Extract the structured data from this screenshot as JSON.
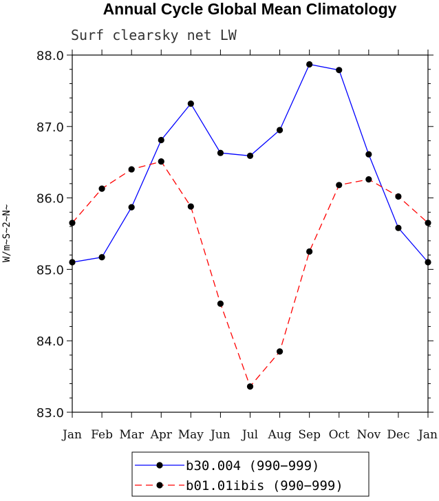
{
  "chart_data": {
    "type": "line",
    "title": "Annual Cycle Global Mean Climatology",
    "subtitle": "Surf clearsky net LW",
    "ylabel": "W/m~S~2~N~",
    "xlabel": "",
    "categories": [
      "Jan",
      "Feb",
      "Mar",
      "Apr",
      "May",
      "Jun",
      "Jul",
      "Aug",
      "Sep",
      "Oct",
      "Nov",
      "Dec",
      "Jan"
    ],
    "ylim": [
      83.0,
      88.0
    ],
    "yticks": [
      "83.0",
      "84.0",
      "85.0",
      "86.0",
      "87.0",
      "88.0"
    ],
    "grid": false,
    "legend_position": "bottom",
    "series": [
      {
        "name": "b30.004 (990−999)",
        "color": "#0000ff",
        "style": "solid",
        "values": [
          85.1,
          85.17,
          85.87,
          86.81,
          87.32,
          86.63,
          86.59,
          86.95,
          87.87,
          87.79,
          86.61,
          85.58,
          85.1
        ]
      },
      {
        "name": "b01.01ibis (990−999)",
        "color": "#ff0000",
        "style": "dashed",
        "values": [
          85.65,
          86.13,
          86.4,
          86.51,
          85.88,
          84.52,
          83.36,
          83.85,
          85.25,
          86.18,
          86.26,
          86.02,
          85.65
        ]
      }
    ]
  }
}
